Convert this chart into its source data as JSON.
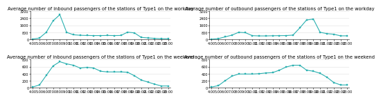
{
  "x_ticks": [
    "4:00",
    "5:00",
    "6:00",
    "7:00",
    "8:00",
    "9:00",
    "10:00",
    "11:00",
    "12:00",
    "13:00",
    "14:00",
    "15:00",
    "16:00",
    "17:00",
    "18:00",
    "19:00",
    "20:00",
    "21:00",
    "22:00",
    "23:00",
    "23:00"
  ],
  "inbound_workday": [
    30,
    150,
    800,
    2100,
    2800,
    800,
    520,
    460,
    440,
    430,
    430,
    440,
    430,
    440,
    820,
    730,
    220,
    160,
    110,
    70,
    70
  ],
  "outbound_workday": [
    20,
    80,
    280,
    480,
    800,
    750,
    420,
    390,
    390,
    410,
    420,
    430,
    480,
    1300,
    2200,
    2300,
    800,
    650,
    580,
    400,
    400
  ],
  "inbound_weekend": [
    20,
    80,
    350,
    620,
    740,
    680,
    640,
    560,
    580,
    560,
    470,
    450,
    450,
    450,
    440,
    340,
    220,
    160,
    100,
    50,
    50
  ],
  "outbound_weekend": [
    20,
    60,
    200,
    330,
    390,
    390,
    390,
    400,
    420,
    430,
    500,
    590,
    640,
    640,
    500,
    470,
    410,
    300,
    150,
    80,
    80
  ],
  "titles": [
    "Average number of inbound passengers of the stations of Type1 on the workday",
    "Average number of outbound passengers of the stations of Type1 on the workday",
    "Average number of inbound passengers of the stations of Type1 on the weekend",
    "Average number of outbound passengers of the stations of Type1 on the weekend"
  ],
  "line_color": "#29b0b0",
  "marker": "s",
  "markersize": 1.5,
  "linewidth": 0.8,
  "title_fontsize": 4.8,
  "tick_fontsize": 3.5,
  "ylim_workday": [
    0,
    3200
  ],
  "ylim_weekend": [
    0,
    800
  ],
  "yticks_workday": [
    0,
    800,
    1600,
    2400,
    3200
  ],
  "yticks_weekend": [
    0,
    200,
    400,
    600,
    800
  ],
  "background_color": "#ffffff",
  "grid_color": "#e0e0e0",
  "grid_linewidth": 0.4
}
